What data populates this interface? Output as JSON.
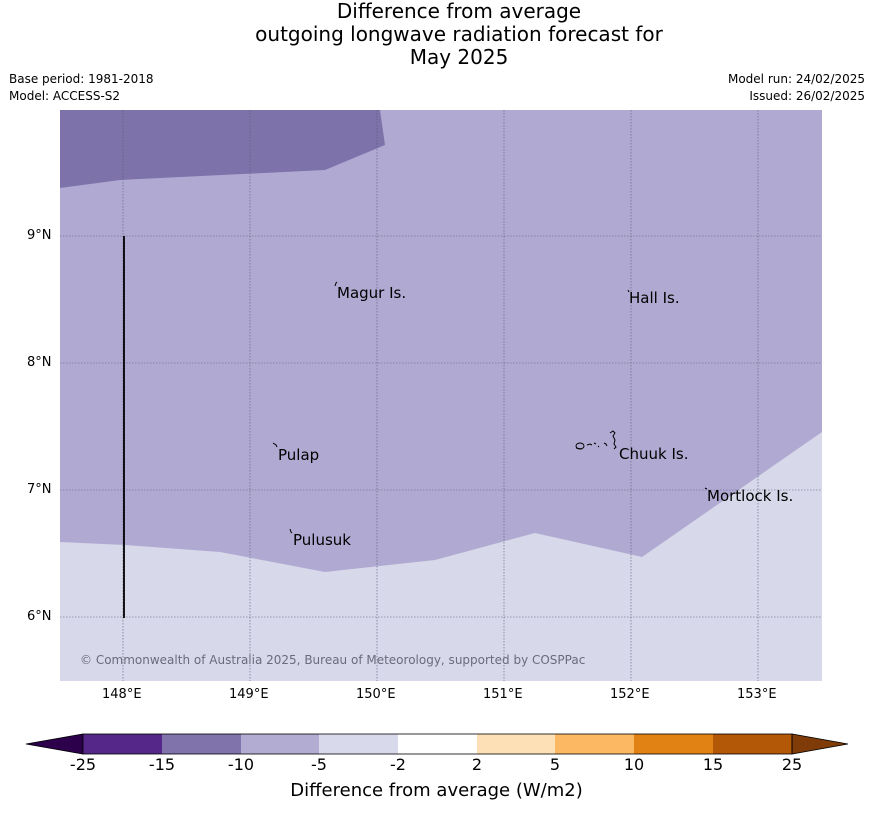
{
  "header": {
    "title_line1": "Difference from average",
    "title_line2": "outgoing longwave radiation forecast for",
    "title_line3": "May 2025",
    "base_period": "Base period: 1981-2018",
    "model": "Model: ACCESS-S2",
    "model_run": "Model run: 24/02/2025",
    "issued": "Issued: 26/02/2025"
  },
  "map": {
    "lat_labels": [
      "9°N",
      "8°N",
      "7°N",
      "6°N"
    ],
    "lon_labels": [
      "148°E",
      "149°E",
      "150°E",
      "151°E",
      "152°E",
      "153°E"
    ],
    "places": [
      {
        "name": "Magur Is."
      },
      {
        "name": "Hall Is."
      },
      {
        "name": "Pulap"
      },
      {
        "name": "Chuuk Is."
      },
      {
        "name": "Mortlock Is."
      },
      {
        "name": "Pulusuk"
      }
    ],
    "copyright": "© Commonwealth of Australia 2025, Bureau of Meteorology, supported by COSPPac",
    "colors": {
      "below_minus15": "#7e72ab",
      "minus10_to_minus5": "#b0aad2",
      "minus5_to_minus2": "#d7d8ea"
    }
  },
  "colorbar": {
    "ticks": [
      "-25",
      "-15",
      "-10",
      "-5",
      "-2",
      "2",
      "5",
      "10",
      "15",
      "25"
    ],
    "colors": [
      "#2d004b",
      "#542788",
      "#8073ac",
      "#b2abd2",
      "#d8daeb",
      "#ffffff",
      "#fee0b6",
      "#fdb863",
      "#e08214",
      "#b35806",
      "#7f3b08"
    ],
    "title": "Difference from average (W/m2)"
  }
}
